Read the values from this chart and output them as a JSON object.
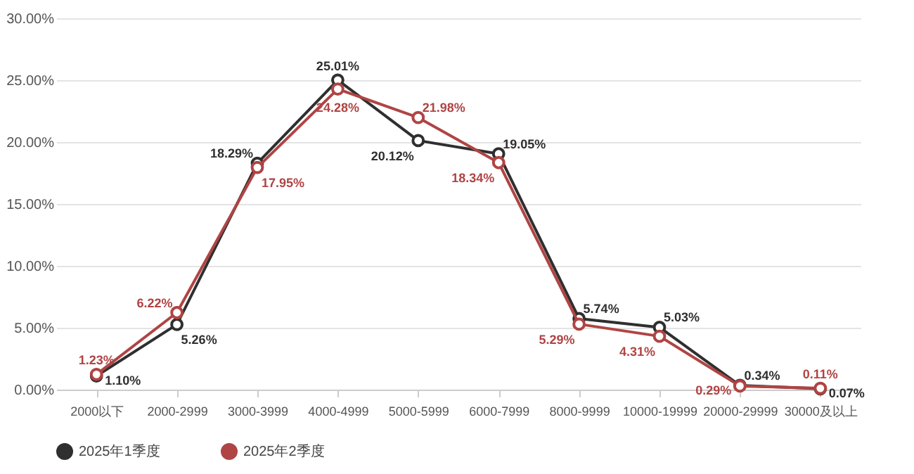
{
  "chart_data": {
    "type": "line",
    "categories": [
      "2000以下",
      "2000-2999",
      "3000-3999",
      "4000-4999",
      "5000-5999",
      "6000-7999",
      "8000-9999",
      "10000-19999",
      "20000-29999",
      "30000及以上"
    ],
    "series": [
      {
        "name": "2025年1季度",
        "color": "#2f2f2f",
        "values": [
          1.1,
          5.26,
          18.29,
          25.01,
          20.12,
          19.05,
          5.74,
          5.03,
          0.34,
          0.07
        ],
        "value_labels": [
          "1.10%",
          "5.26%",
          "18.29%",
          "25.01%",
          "20.12%",
          "19.05%",
          "5.74%",
          "5.03%",
          "0.34%",
          "0.07%"
        ]
      },
      {
        "name": "2025年2季度",
        "color": "#b04444",
        "values": [
          1.23,
          6.22,
          17.95,
          24.28,
          21.98,
          18.34,
          5.29,
          4.31,
          0.29,
          0.11
        ],
        "value_labels": [
          "1.23%",
          "6.22%",
          "17.95%",
          "24.28%",
          "21.98%",
          "18.34%",
          "5.29%",
          "4.31%",
          "0.29%",
          "0.11%"
        ]
      }
    ],
    "ylim": [
      0,
      30
    ],
    "yticks": [
      {
        "value": 0,
        "label": "0.00%"
      },
      {
        "value": 5,
        "label": "5.00%"
      },
      {
        "value": 10,
        "label": "10.00%"
      },
      {
        "value": 15,
        "label": "15.00%"
      },
      {
        "value": 20,
        "label": "20.00%"
      },
      {
        "value": 25,
        "label": "25.00%"
      },
      {
        "value": 30,
        "label": "30.00%"
      }
    ],
    "grid": "y",
    "legend": "bottom",
    "marker": "circle",
    "line_style": "solid"
  }
}
